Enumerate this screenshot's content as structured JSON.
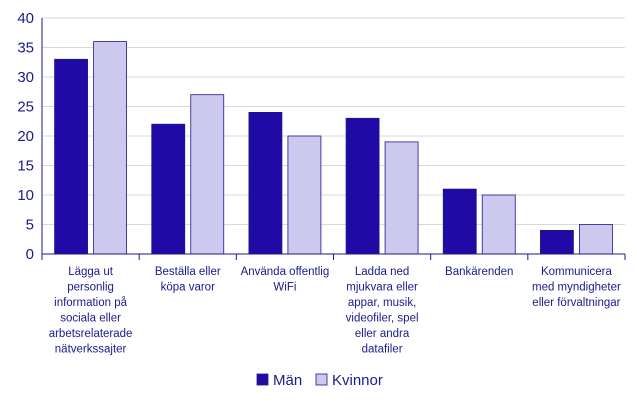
{
  "chart_data": {
    "type": "bar",
    "title": "",
    "xlabel": "",
    "ylabel": "",
    "ylim": [
      0,
      40
    ],
    "yticks": [
      0,
      5,
      10,
      15,
      20,
      25,
      30,
      35,
      40
    ],
    "grid": true,
    "legend_position": "bottom",
    "categories": [
      [
        "Lägga ut",
        "personlig",
        "information på",
        "sociala eller",
        "arbetsrelaterade",
        "nätverkssajter"
      ],
      [
        "Beställa eller",
        "köpa varor"
      ],
      [
        "Använda offentlig",
        "WiFi"
      ],
      [
        "Ladda ned",
        "mjukvara eller",
        "appar, musik,",
        "videofiler, spel",
        "eller andra",
        "datafiler"
      ],
      [
        "Bankärenden"
      ],
      [
        "Kommunicera",
        "med myndigheter",
        "eller förvaltningar"
      ]
    ],
    "series": [
      {
        "name": "Män",
        "color": "#1f0aa6",
        "values": [
          33,
          22,
          24,
          23,
          11,
          4
        ]
      },
      {
        "name": "Kvinnor",
        "color": "#cdc8ee",
        "values": [
          36,
          27,
          20,
          19,
          10,
          5
        ]
      }
    ]
  }
}
